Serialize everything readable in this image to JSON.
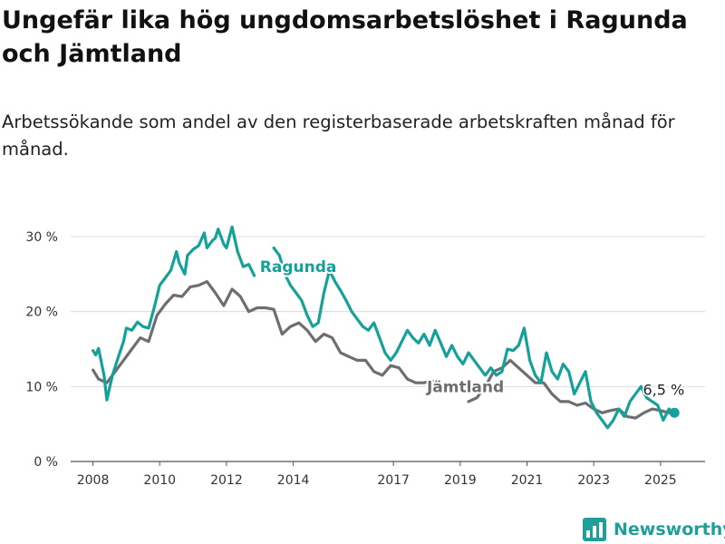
{
  "header": {
    "title": "Ungefär lika hög ungdomsarbetslöshet i Ragunda och Jämtland",
    "subtitle": "Arbetssökande som andel av den registerbaserade arbetskraften månad för månad."
  },
  "brand": {
    "name": "Newsworthy",
    "icon": "bar-chart-logo-icon",
    "color": "#1f9e9a"
  },
  "chart_data": {
    "type": "line",
    "title": "",
    "xlabel": "",
    "ylabel": "",
    "x_ticks": [
      "2008",
      "2010",
      "2012",
      "2014",
      "2017",
      "2019",
      "2021",
      "2023",
      "2025"
    ],
    "y_ticks": [
      "0 %",
      "10 %",
      "20 %",
      "30 %"
    ],
    "ylim": [
      0,
      32
    ],
    "xlim": [
      "2007-05",
      "2026-05"
    ],
    "grid": "horizontal",
    "series": [
      {
        "name": "Ragunda",
        "color": "#14a19a",
        "points": [
          [
            "2008-01",
            14.8
          ],
          [
            "2008-02",
            14.2
          ],
          [
            "2008-03",
            15.1
          ],
          [
            "2008-05",
            11.5
          ],
          [
            "2008-06",
            8.2
          ],
          [
            "2008-08",
            11.5
          ],
          [
            "2008-10",
            13.8
          ],
          [
            "2008-12",
            16.0
          ],
          [
            "2009-01",
            17.8
          ],
          [
            "2009-03",
            17.5
          ],
          [
            "2009-05",
            18.6
          ],
          [
            "2009-07",
            18.0
          ],
          [
            "2009-09",
            17.8
          ],
          [
            "2009-11",
            20.5
          ],
          [
            "2010-01",
            23.5
          ],
          [
            "2010-03",
            24.5
          ],
          [
            "2010-05",
            25.5
          ],
          [
            "2010-07",
            28.0
          ],
          [
            "2010-08",
            26.5
          ],
          [
            "2010-10",
            25.0
          ],
          [
            "2010-11",
            27.5
          ],
          [
            "2011-01",
            28.3
          ],
          [
            "2011-03",
            28.8
          ],
          [
            "2011-05",
            30.5
          ],
          [
            "2011-06",
            28.5
          ],
          [
            "2011-08",
            29.5
          ],
          [
            "2011-09",
            29.8
          ],
          [
            "2011-10",
            31.0
          ],
          [
            "2011-12",
            29.0
          ],
          [
            "2012-01",
            28.5
          ],
          [
            "2012-03",
            31.3
          ],
          [
            "2012-05",
            28.0
          ],
          [
            "2012-07",
            26.0
          ],
          [
            "2012-09",
            26.3
          ],
          [
            "2012-11",
            24.8
          ]
        ],
        "points_2": [
          [
            "2013-06",
            28.5
          ],
          [
            "2013-08",
            27.5
          ],
          [
            "2013-10",
            25.0
          ],
          [
            "2013-12",
            23.5
          ],
          [
            "2014-02",
            22.5
          ],
          [
            "2014-04",
            21.5
          ],
          [
            "2014-06",
            19.5
          ],
          [
            "2014-08",
            18.0
          ],
          [
            "2014-10",
            18.5
          ],
          [
            "2014-12",
            22.5
          ],
          [
            "2015-02",
            25.5
          ],
          [
            "2015-04",
            24.0
          ],
          [
            "2015-06",
            22.8
          ],
          [
            "2015-08",
            21.5
          ],
          [
            "2015-10",
            20.0
          ],
          [
            "2015-12",
            19.0
          ],
          [
            "2016-02",
            18.0
          ],
          [
            "2016-04",
            17.5
          ],
          [
            "2016-06",
            18.5
          ],
          [
            "2016-08",
            16.5
          ],
          [
            "2016-10",
            14.5
          ],
          [
            "2016-12",
            13.5
          ],
          [
            "2017-02",
            14.5
          ],
          [
            "2017-04",
            16.0
          ],
          [
            "2017-06",
            17.5
          ],
          [
            "2017-08",
            16.5
          ],
          [
            "2017-10",
            15.8
          ],
          [
            "2017-12",
            17.0
          ],
          [
            "2018-02",
            15.5
          ],
          [
            "2018-04",
            17.5
          ],
          [
            "2018-06",
            15.8
          ],
          [
            "2018-08",
            14.0
          ],
          [
            "2018-10",
            15.5
          ],
          [
            "2018-12",
            14.0
          ],
          [
            "2019-02",
            13.0
          ],
          [
            "2019-04",
            14.5
          ],
          [
            "2019-06",
            13.5
          ],
          [
            "2019-08",
            12.5
          ],
          [
            "2019-10",
            11.5
          ],
          [
            "2019-12",
            12.5
          ],
          [
            "2020-02",
            11.5
          ],
          [
            "2020-04",
            12.0
          ],
          [
            "2020-06",
            15.0
          ],
          [
            "2020-08",
            14.8
          ],
          [
            "2020-10",
            15.5
          ],
          [
            "2020-12",
            17.8
          ],
          [
            "2021-02",
            13.5
          ],
          [
            "2021-04",
            11.5
          ],
          [
            "2021-06",
            10.5
          ],
          [
            "2021-08",
            14.5
          ],
          [
            "2021-10",
            12.0
          ],
          [
            "2021-12",
            11.0
          ],
          [
            "2022-02",
            13.0
          ],
          [
            "2022-04",
            12.0
          ],
          [
            "2022-06",
            9.0
          ],
          [
            "2022-08",
            10.5
          ],
          [
            "2022-10",
            12.0
          ],
          [
            "2022-12",
            8.0
          ],
          [
            "2023-02",
            6.5
          ],
          [
            "2023-04",
            5.5
          ],
          [
            "2023-06",
            4.5
          ],
          [
            "2023-08",
            5.5
          ],
          [
            "2023-10",
            7.0
          ],
          [
            "2023-12",
            6.0
          ],
          [
            "2024-02",
            8.0
          ],
          [
            "2024-04",
            9.0
          ],
          [
            "2024-06",
            10.0
          ],
          [
            "2024-08",
            8.5
          ],
          [
            "2024-10",
            8.0
          ],
          [
            "2024-12",
            7.5
          ],
          [
            "2025-02",
            5.5
          ],
          [
            "2025-04",
            7.0
          ],
          [
            "2025-06",
            6.5
          ]
        ]
      },
      {
        "name": "Jämtland",
        "color": "#6e6e72",
        "points": [
          [
            "2008-01",
            12.2
          ],
          [
            "2008-03",
            11.0
          ],
          [
            "2008-06",
            10.5
          ],
          [
            "2008-09",
            12.0
          ],
          [
            "2008-12",
            13.5
          ],
          [
            "2009-03",
            15.0
          ],
          [
            "2009-06",
            16.5
          ],
          [
            "2009-09",
            16.0
          ],
          [
            "2009-12",
            19.5
          ],
          [
            "2010-03",
            21.0
          ],
          [
            "2010-06",
            22.2
          ],
          [
            "2010-09",
            22.0
          ],
          [
            "2010-12",
            23.3
          ],
          [
            "2011-03",
            23.5
          ],
          [
            "2011-06",
            24.0
          ],
          [
            "2011-09",
            22.5
          ],
          [
            "2011-12",
            20.8
          ],
          [
            "2012-03",
            23.0
          ],
          [
            "2012-06",
            22.0
          ],
          [
            "2012-09",
            20.0
          ],
          [
            "2012-12",
            20.5
          ],
          [
            "2013-03",
            20.5
          ],
          [
            "2013-06",
            20.3
          ],
          [
            "2013-09",
            17.0
          ],
          [
            "2013-12",
            18.0
          ],
          [
            "2014-03",
            18.5
          ],
          [
            "2014-06",
            17.5
          ],
          [
            "2014-09",
            16.0
          ],
          [
            "2014-12",
            17.0
          ],
          [
            "2015-03",
            16.5
          ],
          [
            "2015-06",
            14.5
          ],
          [
            "2015-09",
            14.0
          ],
          [
            "2015-12",
            13.5
          ],
          [
            "2016-03",
            13.5
          ],
          [
            "2016-06",
            12.0
          ],
          [
            "2016-09",
            11.5
          ],
          [
            "2016-12",
            12.8
          ],
          [
            "2017-03",
            12.5
          ],
          [
            "2017-06",
            11.0
          ],
          [
            "2017-09",
            10.5
          ],
          [
            "2017-12",
            10.5
          ],
          [
            "2018-03",
            10.8
          ],
          [
            "2018-06",
            10.0
          ]
        ],
        "points_2": [
          [
            "2019-04",
            8.0
          ],
          [
            "2019-07",
            8.5
          ],
          [
            "2019-10",
            10.0
          ],
          [
            "2020-01",
            12.0
          ],
          [
            "2020-04",
            12.5
          ],
          [
            "2020-07",
            13.5
          ],
          [
            "2020-10",
            12.5
          ],
          [
            "2021-01",
            11.5
          ],
          [
            "2021-04",
            10.5
          ],
          [
            "2021-07",
            10.5
          ],
          [
            "2021-10",
            9.0
          ],
          [
            "2022-01",
            8.0
          ],
          [
            "2022-04",
            8.0
          ],
          [
            "2022-07",
            7.5
          ],
          [
            "2022-10",
            7.8
          ],
          [
            "2023-01",
            7.0
          ],
          [
            "2023-04",
            6.5
          ],
          [
            "2023-07",
            6.8
          ],
          [
            "2023-10",
            7.0
          ],
          [
            "2024-01",
            6.0
          ],
          [
            "2024-04",
            5.8
          ],
          [
            "2024-07",
            6.5
          ],
          [
            "2024-10",
            7.0
          ],
          [
            "2025-01",
            6.8
          ],
          [
            "2025-04",
            6.5
          ],
          [
            "2025-06",
            6.5
          ]
        ]
      }
    ],
    "annotations": [
      {
        "text": "Ragunda",
        "series": "Ragunda",
        "at": [
          "2013-01",
          25.5
        ]
      },
      {
        "text": "Jämtland",
        "series": "Jämtland",
        "at": [
          "2018-01",
          9.5
        ]
      },
      {
        "text": "6,5 %",
        "series": "Ragunda",
        "at": [
          "2025-06",
          6.5
        ]
      }
    ]
  }
}
